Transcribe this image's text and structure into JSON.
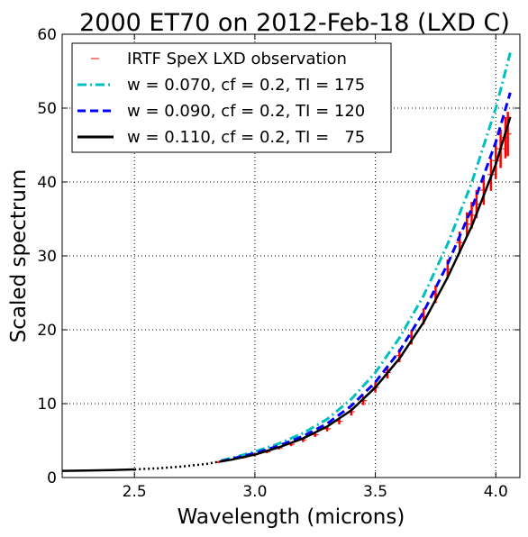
{
  "chart_data": {
    "type": "line",
    "title": "2000 ET70 on 2012-Feb-18 (LXD C)",
    "xlabel": "Wavelength (microns)",
    "ylabel": "Scaled spectrum",
    "xlim": [
      2.2,
      4.1
    ],
    "ylim": [
      0,
      60
    ],
    "xticks": [
      2.5,
      3.0,
      3.5,
      4.0
    ],
    "xtick_labels": [
      "2.5",
      "3.0",
      "3.5",
      "4.0"
    ],
    "yticks": [
      0,
      10,
      20,
      30,
      40,
      50,
      60
    ],
    "ytick_labels": [
      "0",
      "10",
      "20",
      "30",
      "40",
      "50",
      "60"
    ],
    "grid": true,
    "legend_position": "top-left",
    "observation": {
      "name": "IRTF SpeX LXD observation",
      "color": "#ff0000",
      "x": [
        2.85,
        2.9,
        2.95,
        3.0,
        3.05,
        3.1,
        3.15,
        3.2,
        3.25,
        3.3,
        3.35,
        3.4,
        3.45,
        3.5,
        3.55,
        3.6,
        3.65,
        3.7,
        3.75,
        3.8,
        3.85,
        3.88,
        3.9,
        3.92,
        3.95,
        3.98,
        4.0,
        4.02,
        4.04,
        4.05
      ],
      "y": [
        2.1,
        2.4,
        2.7,
        3.1,
        3.5,
        4.0,
        4.5,
        5.1,
        5.8,
        6.6,
        7.6,
        8.9,
        10.4,
        12.2,
        14.2,
        16.5,
        19.0,
        21.8,
        24.8,
        28.2,
        31.8,
        34.3,
        35.5,
        37.0,
        38.9,
        41.0,
        42.9,
        44.5,
        46.0,
        46.5
      ],
      "err": [
        0.15,
        0.15,
        0.15,
        0.2,
        0.2,
        0.2,
        0.25,
        0.3,
        0.3,
        0.35,
        0.4,
        0.5,
        0.6,
        0.7,
        0.8,
        0.9,
        1.0,
        1.1,
        1.2,
        1.3,
        1.5,
        1.6,
        1.8,
        1.9,
        2.0,
        2.2,
        2.5,
        2.6,
        2.8,
        3.0
      ]
    },
    "series": [
      {
        "name": "w = 0.070, cf = 0.2, TI = 175",
        "color": "#00bfbf",
        "style": "dashdot",
        "x": [
          2.86,
          2.9,
          3.0,
          3.1,
          3.2,
          3.3,
          3.4,
          3.5,
          3.6,
          3.7,
          3.8,
          3.9,
          4.0,
          4.06
        ],
        "y": [
          2.3,
          2.6,
          3.5,
          4.6,
          6.0,
          7.9,
          10.6,
          14.2,
          18.9,
          24.6,
          31.6,
          39.9,
          50.0,
          57.5
        ]
      },
      {
        "name": "w = 0.090, cf = 0.2, TI = 120",
        "color": "#0000ff",
        "style": "dashed",
        "x": [
          2.86,
          2.9,
          3.0,
          3.1,
          3.2,
          3.3,
          3.4,
          3.5,
          3.6,
          3.7,
          3.8,
          3.9,
          4.0,
          4.06
        ],
        "y": [
          2.2,
          2.5,
          3.3,
          4.3,
          5.6,
          7.3,
          9.7,
          12.9,
          17.1,
          22.4,
          28.9,
          36.4,
          45.4,
          52.1
        ]
      },
      {
        "name": "w = 0.110, cf = 0.2, TI =   75",
        "color": "#000000",
        "style": "solid",
        "x": [
          2.2,
          2.3,
          2.4,
          2.5,
          2.86,
          2.9,
          3.0,
          3.1,
          3.2,
          3.3,
          3.4,
          3.5,
          3.6,
          3.7,
          3.8,
          3.9,
          4.0,
          4.06
        ],
        "y": [
          0.9,
          0.95,
          1.0,
          1.1,
          2.2,
          2.4,
          3.1,
          4.1,
          5.3,
          6.9,
          9.1,
          12.2,
          16.1,
          21.0,
          27.1,
          34.0,
          42.4,
          48.8
        ]
      }
    ],
    "model_gap": {
      "x": [
        2.5,
        2.6,
        2.7,
        2.8,
        2.86
      ],
      "y": [
        1.1,
        1.25,
        1.5,
        1.85,
        2.2
      ]
    }
  }
}
